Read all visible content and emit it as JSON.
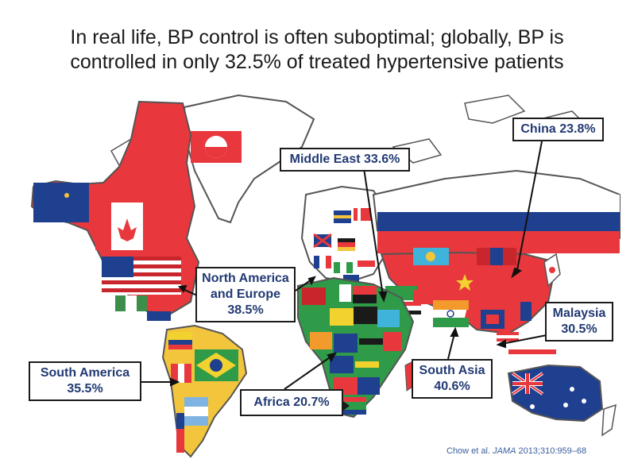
{
  "title": {
    "line1": "In real life, BP control is often suboptimal; globally, BP is",
    "line2": "controlled in only 32.5% of treated hypertensive patients"
  },
  "chart_data": {
    "type": "map",
    "title": "In real life, BP control is often suboptimal; globally, BP is controlled in only 32.5% of treated hypertensive patients",
    "global_value": 32.5,
    "unit": "%",
    "regions": [
      {
        "name": "China",
        "value": 23.8
      },
      {
        "name": "Middle East",
        "value": 33.6
      },
      {
        "name": "North America and Europe",
        "value": 38.5
      },
      {
        "name": "South America",
        "value": 35.5
      },
      {
        "name": "Africa",
        "value": 20.7
      },
      {
        "name": "South Asia",
        "value": 40.6
      },
      {
        "name": "Malaysia",
        "value": 30.5
      }
    ]
  },
  "labels": {
    "china": {
      "line1": "China 23.8%"
    },
    "middle_east": {
      "line1": "Middle East 33.6%"
    },
    "north_america_europe": {
      "line1": "North America",
      "line2": "and Europe",
      "line3": "38.5%"
    },
    "south_america": {
      "line1": "South America",
      "line2": "35.5%"
    },
    "africa": {
      "line1": "Africa 20.7%"
    },
    "south_asia": {
      "line1": "South Asia",
      "line2": "40.6%"
    },
    "malaysia": {
      "line1": "Malaysia",
      "line2": "30.5%"
    }
  },
  "citation": {
    "authors": "Chow et al.",
    "journal": "JAMA",
    "details": "2013;310:959–68"
  },
  "colors": {
    "land_red": "#e8383d",
    "land_outline": "#555555",
    "ocean": "#ffffff",
    "label_text": "#223a73",
    "citation_text": "#3a5fa0"
  }
}
